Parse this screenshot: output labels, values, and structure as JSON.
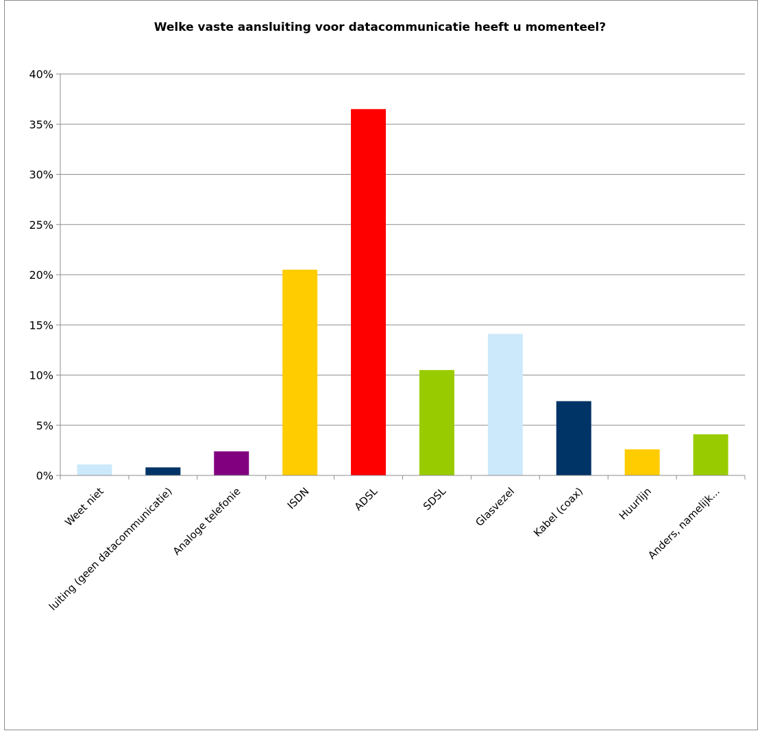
{
  "chart_data": {
    "type": "bar",
    "title": "Welke vaste aansluiting voor  datacommunicatie heeft u momenteel?",
    "xlabel": "",
    "ylabel": "",
    "categories": [
      "Weet niet",
      "Geen aansluiting (geen datacommunicatie)",
      "Analoge telefonie",
      "ISDN",
      "ADSL",
      "SDSL",
      "Glasvezel",
      "Kabel (coax)",
      "Huurlijn",
      "Anders, namelijk..."
    ],
    "values": [
      1.1,
      0.8,
      2.4,
      20.5,
      36.5,
      10.5,
      14.1,
      7.4,
      2.6,
      4.1
    ],
    "colors": [
      "#cce9fb",
      "#003366",
      "#800080",
      "#ffcc00",
      "#ff0000",
      "#99cc00",
      "#cce9fb",
      "#003366",
      "#ffcc00",
      "#99cc00"
    ],
    "ylim": [
      0,
      40
    ],
    "yticks": [
      0,
      5,
      10,
      15,
      20,
      25,
      30,
      35,
      40
    ],
    "ytick_labels": [
      "0%",
      "5%",
      "10%",
      "15%",
      "20%",
      "25%",
      "30%",
      "35%",
      "40%"
    ],
    "grid": true,
    "legend": "none"
  }
}
